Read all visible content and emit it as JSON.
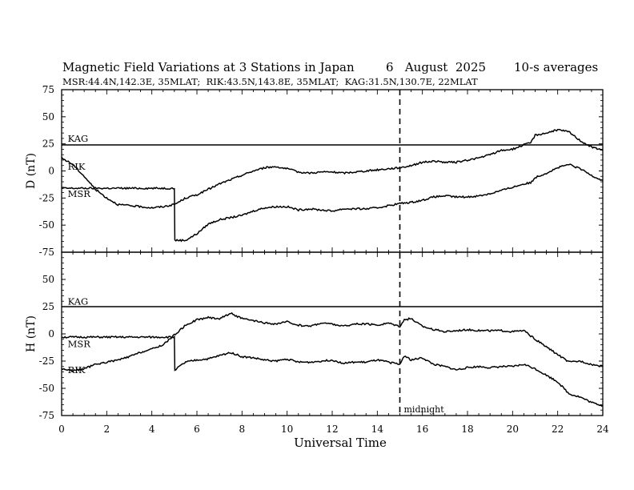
{
  "chart_data": {
    "type": "line",
    "title": "Magnetic Field Variations at 3 Stations in Japan",
    "date": "6   August  2025",
    "averaging": "10-s averages",
    "stations_line": "MSR:44.4N,142.3E, 35MLAT;  RIK:43.5N,143.8E, 35MLAT;  KAG:31.5N,130.7E, 22MLAT",
    "xlabel": "Universal Time",
    "xlim": [
      0,
      24
    ],
    "xticks": [
      "0",
      "2",
      "4",
      "6",
      "8",
      "10",
      "12",
      "14",
      "16",
      "18",
      "20",
      "22",
      "24"
    ],
    "midnight": {
      "x": 15,
      "label": "midnight"
    },
    "panels": [
      {
        "ylabel": "D (nT)",
        "ylim": [
          -75,
          75
        ],
        "yticks": [
          "75",
          "50",
          "25",
          "0",
          "-25",
          "-50",
          "-75"
        ],
        "station_labels": [
          {
            "text": "KAG",
            "x": 0.2,
            "y": 27
          },
          {
            "text": "RIK",
            "x": 0.2,
            "y": 1
          },
          {
            "text": "MSR",
            "x": 0.2,
            "y": -24
          }
        ],
        "series": [
          {
            "name": "KAG",
            "points": [
              [
                0,
                24
              ],
              [
                24,
                24
              ]
            ]
          },
          {
            "name": "MSR",
            "points": [
              [
                0,
                -16
              ],
              [
                5,
                -16
              ],
              [
                5.02,
                -64
              ],
              [
                5.5,
                -64
              ],
              [
                6,
                -58
              ],
              [
                6.5,
                -49
              ],
              [
                7,
                -45
              ],
              [
                7.5,
                -43
              ],
              [
                8,
                -41
              ],
              [
                8.5,
                -37
              ],
              [
                9,
                -34
              ],
              [
                9.5,
                -33
              ],
              [
                10,
                -33
              ],
              [
                10.5,
                -36
              ],
              [
                11,
                -35
              ],
              [
                11.5,
                -36
              ],
              [
                12,
                -37
              ],
              [
                12.5,
                -35
              ],
              [
                13,
                -35
              ],
              [
                13.5,
                -35
              ],
              [
                14,
                -34
              ],
              [
                14.5,
                -32
              ],
              [
                15,
                -30
              ],
              [
                15.5,
                -29
              ],
              [
                16,
                -27
              ],
              [
                16.5,
                -24
              ],
              [
                17,
                -23
              ],
              [
                17.5,
                -24
              ],
              [
                18,
                -24
              ],
              [
                18.5,
                -23
              ],
              [
                19,
                -21
              ],
              [
                19.5,
                -18
              ],
              [
                20,
                -15
              ],
              [
                20.5,
                -12
              ],
              [
                20.8,
                -11
              ],
              [
                21,
                -6
              ],
              [
                21.5,
                -2
              ],
              [
                22,
                3
              ],
              [
                22.5,
                6
              ],
              [
                23,
                2
              ],
              [
                23.5,
                -4
              ],
              [
                24,
                -9
              ]
            ]
          },
          {
            "name": "RIK",
            "points": [
              [
                0,
                12
              ],
              [
                0.5,
                6
              ],
              [
                1,
                -5
              ],
              [
                1.5,
                -17
              ],
              [
                2,
                -25
              ],
              [
                2.5,
                -31
              ],
              [
                3,
                -32
              ],
              [
                3.5,
                -33
              ],
              [
                4,
                -34
              ],
              [
                4.5,
                -33
              ],
              [
                5,
                -31
              ],
              [
                5.5,
                -25
              ],
              [
                6,
                -22
              ],
              [
                6.5,
                -17
              ],
              [
                7,
                -12
              ],
              [
                7.5,
                -8
              ],
              [
                8,
                -4
              ],
              [
                8.5,
                0
              ],
              [
                9,
                3
              ],
              [
                9.5,
                4
              ],
              [
                10,
                2
              ],
              [
                10.5,
                -1
              ],
              [
                11,
                -2
              ],
              [
                11.5,
                -1
              ],
              [
                12,
                -1
              ],
              [
                12.5,
                -2
              ],
              [
                13,
                -1
              ],
              [
                13.5,
                0
              ],
              [
                14,
                1
              ],
              [
                14.5,
                2
              ],
              [
                15,
                3
              ],
              [
                15.5,
                5
              ],
              [
                16,
                8
              ],
              [
                16.5,
                9
              ],
              [
                17,
                8
              ],
              [
                17.5,
                8
              ],
              [
                18,
                10
              ],
              [
                18.5,
                12
              ],
              [
                19,
                15
              ],
              [
                19.5,
                19
              ],
              [
                20,
                20
              ],
              [
                20.5,
                24
              ],
              [
                20.8,
                26
              ],
              [
                21,
                33
              ],
              [
                21.5,
                35
              ],
              [
                22,
                38
              ],
              [
                22.5,
                36
              ],
              [
                23,
                28
              ],
              [
                23.5,
                22
              ],
              [
                24,
                19
              ]
            ]
          }
        ]
      },
      {
        "ylabel": "H (nT)",
        "ylim": [
          -75,
          75
        ],
        "yticks": [
          "75",
          "50",
          "25",
          "0",
          "-25",
          "-50",
          "-75"
        ],
        "station_labels": [
          {
            "text": "KAG",
            "x": 0.2,
            "y": 27
          },
          {
            "text": "MSR",
            "x": 0.2,
            "y": -12
          },
          {
            "text": "RIK",
            "x": 0.2,
            "y": -36
          }
        ],
        "series": [
          {
            "name": "KAG",
            "points": [
              [
                0,
                25
              ],
              [
                24,
                25
              ]
            ]
          },
          {
            "name": "MSR",
            "points": [
              [
                0,
                -3
              ],
              [
                5,
                -3
              ],
              [
                5.02,
                -33
              ],
              [
                5.5,
                -26
              ],
              [
                6,
                -24
              ],
              [
                6.5,
                -23
              ],
              [
                7,
                -20
              ],
              [
                7.5,
                -17
              ],
              [
                8,
                -21
              ],
              [
                8.5,
                -22
              ],
              [
                9,
                -24
              ],
              [
                9.5,
                -25
              ],
              [
                10,
                -23
              ],
              [
                10.5,
                -26
              ],
              [
                11,
                -26
              ],
              [
                11.5,
                -25
              ],
              [
                12,
                -24
              ],
              [
                12.5,
                -27
              ],
              [
                13,
                -26
              ],
              [
                13.5,
                -26
              ],
              [
                14,
                -24
              ],
              [
                14.5,
                -26
              ],
              [
                15,
                -28
              ],
              [
                15.2,
                -20
              ],
              [
                15.5,
                -24
              ],
              [
                16,
                -22
              ],
              [
                16.5,
                -28
              ],
              [
                17,
                -30
              ],
              [
                17.5,
                -33
              ],
              [
                18,
                -31
              ],
              [
                18.5,
                -30
              ],
              [
                19,
                -31
              ],
              [
                19.5,
                -30
              ],
              [
                20,
                -30
              ],
              [
                20.5,
                -28
              ],
              [
                21,
                -32
              ],
              [
                21.5,
                -38
              ],
              [
                22,
                -44
              ],
              [
                22.5,
                -55
              ],
              [
                23,
                -58
              ],
              [
                23.5,
                -63
              ],
              [
                24,
                -66
              ]
            ]
          },
          {
            "name": "RIK",
            "points": [
              [
                0,
                -32
              ],
              [
                0.5,
                -34
              ],
              [
                1,
                -32
              ],
              [
                1.5,
                -28
              ],
              [
                2,
                -26
              ],
              [
                2.5,
                -24
              ],
              [
                3,
                -21
              ],
              [
                3.5,
                -17
              ],
              [
                4,
                -14
              ],
              [
                4.5,
                -10
              ],
              [
                5,
                -1
              ],
              [
                5.5,
                8
              ],
              [
                6,
                13
              ],
              [
                6.5,
                15
              ],
              [
                7,
                14
              ],
              [
                7.5,
                19
              ],
              [
                8,
                14
              ],
              [
                8.5,
                12
              ],
              [
                9,
                10
              ],
              [
                9.5,
                9
              ],
              [
                10,
                11
              ],
              [
                10.5,
                8
              ],
              [
                11,
                7
              ],
              [
                11.5,
                10
              ],
              [
                12,
                9
              ],
              [
                12.5,
                7
              ],
              [
                13,
                9
              ],
              [
                13.5,
                9
              ],
              [
                14,
                8
              ],
              [
                14.5,
                10
              ],
              [
                15,
                7
              ],
              [
                15.2,
                13
              ],
              [
                15.5,
                14
              ],
              [
                16,
                7
              ],
              [
                16.5,
                4
              ],
              [
                17,
                2
              ],
              [
                17.5,
                3
              ],
              [
                18,
                4
              ],
              [
                18.5,
                3
              ],
              [
                19,
                3
              ],
              [
                19.5,
                3
              ],
              [
                20,
                2
              ],
              [
                20.5,
                3
              ],
              [
                21,
                -5
              ],
              [
                21.5,
                -12
              ],
              [
                22,
                -19
              ],
              [
                22.5,
                -26
              ],
              [
                23,
                -25
              ],
              [
                23.5,
                -28
              ],
              [
                24,
                -30
              ]
            ]
          }
        ]
      }
    ]
  }
}
